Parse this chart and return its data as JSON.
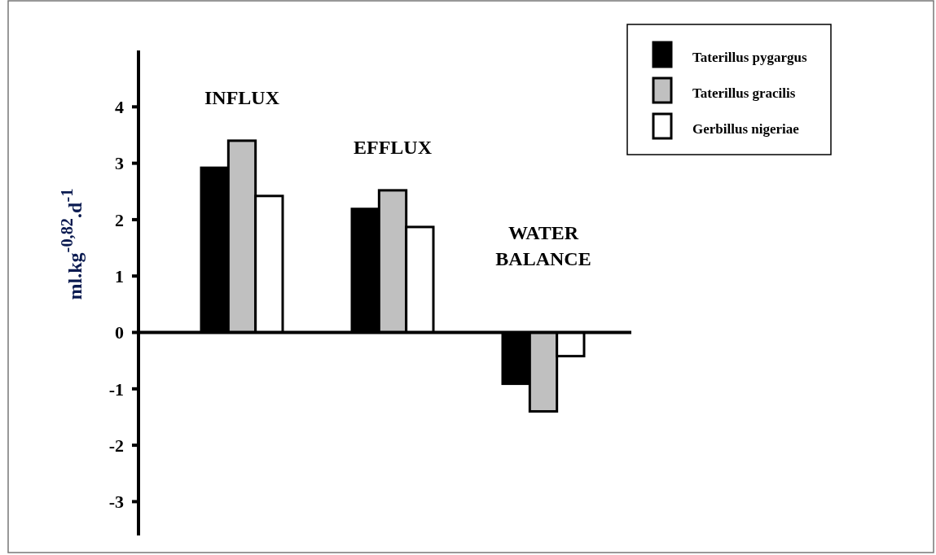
{
  "chart_data": {
    "type": "bar",
    "ylabel": "ml.kg$^{-0,82}$.d$^{-1}$",
    "categories": [
      "INFLUX",
      "EFFLUX",
      "WATER BALANCE"
    ],
    "series": [
      {
        "name": "Taterillus pygargus",
        "color": "#000000",
        "values": [
          2.92,
          2.19,
          -0.91
        ]
      },
      {
        "name": "Taterillus gracilis",
        "color": "#c0c0c0",
        "values": [
          3.4,
          2.52,
          -1.4
        ]
      },
      {
        "name": "Gerbillus nigeriae",
        "color": "#ffffff",
        "values": [
          2.42,
          1.87,
          -0.42
        ]
      }
    ],
    "ylim": [
      -3.6,
      5
    ],
    "yticks": [
      -3,
      -2,
      -1,
      0,
      1,
      2,
      3,
      4
    ],
    "legend": "top right"
  }
}
